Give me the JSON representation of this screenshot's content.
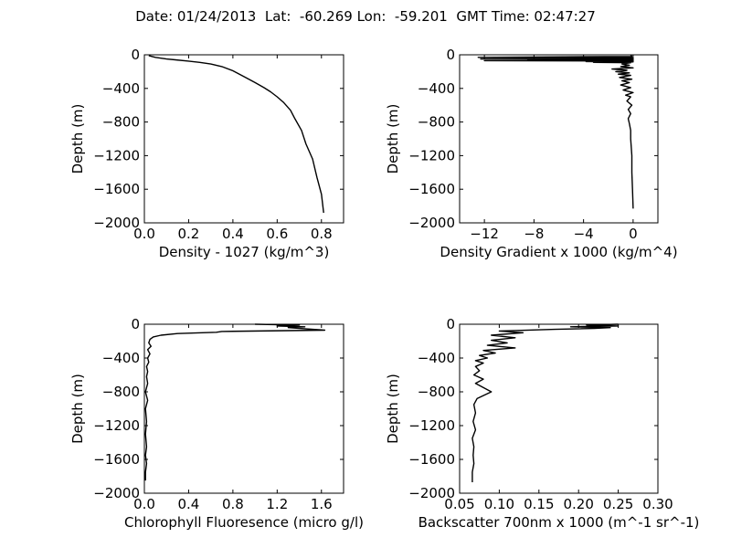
{
  "suptitle": "Date: 01/24/2013  Lat:  -60.269 Lon:  -59.201  GMT Time: 02:47:27",
  "chart_data": [
    {
      "type": "line",
      "xlabel": "Density - 1027 (kg/m^3)",
      "ylabel": "Depth (m)",
      "xlim": [
        0,
        0.9
      ],
      "ylim": [
        -2000,
        0
      ],
      "xticks": [
        0.0,
        0.2,
        0.4,
        0.6,
        0.8
      ],
      "xticklabels": [
        "0.0",
        "0.2",
        "0.4",
        "0.6",
        "0.8"
      ],
      "yticks": [
        0,
        -400,
        -800,
        -1200,
        -1600,
        -2000
      ],
      "yticklabels": [
        "0",
        "−400",
        "−800",
        "−1200",
        "−1600",
        "−2000"
      ],
      "series": [
        {
          "x": [
            0.02,
            0.05,
            0.1,
            0.14,
            0.2,
            0.25,
            0.3,
            0.35,
            0.4,
            0.45,
            0.5,
            0.54,
            0.57,
            0.6,
            0.63,
            0.66,
            0.68,
            0.71,
            0.73,
            0.76,
            0.78,
            0.8,
            0.81
          ],
          "y": [
            -10,
            -30,
            -50,
            -60,
            -75,
            -90,
            -110,
            -140,
            -190,
            -260,
            -330,
            -390,
            -440,
            -500,
            -570,
            -660,
            -760,
            -900,
            -1060,
            -1240,
            -1460,
            -1660,
            -1880
          ]
        }
      ]
    },
    {
      "type": "line",
      "xlabel": "Density Gradient x 1000 (kg/m^4)",
      "ylabel": "Depth (m)",
      "xlim": [
        -14,
        2
      ],
      "ylim": [
        -2000,
        0
      ],
      "xticks": [
        -12,
        -8,
        -4,
        0
      ],
      "xticklabels": [
        "−12",
        "−8",
        "−4",
        "0"
      ],
      "yticks": [
        0,
        -400,
        -800,
        -1200,
        -1600,
        -2000
      ],
      "yticklabels": [
        "0",
        "−400",
        "−800",
        "−1200",
        "−1600",
        "−2000"
      ],
      "series": [
        {
          "x": [
            -0.2,
            -0.1,
            -12.5,
            0,
            -4.5,
            0,
            -12.3,
            0,
            -8.5,
            0,
            -12,
            0,
            -3.8,
            0,
            -3.2,
            -0.2,
            -0.9,
            -0.3,
            -1,
            0,
            -1.7,
            -0.5,
            -1.4,
            -0.3,
            -1.2,
            -0.2,
            -1.1,
            -0.1,
            -0.9,
            -0.3,
            -1.0,
            -0.2,
            -0.8,
            0,
            -0.6,
            -0.2,
            -0.5,
            -0.1,
            -0.4,
            -0.2,
            -0.4,
            -0.3,
            -0.2,
            -0.2,
            -0.1,
            -0.1,
            -0.05,
            0
          ],
          "y": [
            0,
            -20,
            -30,
            -35,
            -40,
            -45,
            -50,
            -55,
            -60,
            -65,
            -70,
            -75,
            -80,
            -85,
            -90,
            -95,
            -110,
            -125,
            -140,
            -155,
            -170,
            -185,
            -200,
            -215,
            -230,
            -245,
            -270,
            -290,
            -310,
            -330,
            -360,
            -390,
            -420,
            -450,
            -480,
            -500,
            -550,
            -600,
            -650,
            -700,
            -760,
            -820,
            -900,
            -1000,
            -1200,
            -1400,
            -1600,
            -1830
          ]
        }
      ]
    },
    {
      "type": "line",
      "xlabel": "Chlorophyll Fluoresence (micro g/l)",
      "ylabel": "Depth (m)",
      "xlim": [
        0,
        1.8
      ],
      "ylim": [
        -2000,
        0
      ],
      "xticks": [
        0.0,
        0.4,
        0.8,
        1.2,
        1.6
      ],
      "xticklabels": [
        "0.0",
        "0.4",
        "0.8",
        "1.2",
        "1.6"
      ],
      "yticks": [
        0,
        -400,
        -800,
        -1200,
        -1600,
        -2000
      ],
      "yticklabels": [
        "0",
        "−400",
        "−800",
        "−1200",
        "−1600",
        "−2000"
      ],
      "series": [
        {
          "x": [
            1.0,
            1.4,
            1.2,
            1.45,
            1.3,
            1.63,
            0.7,
            0.65,
            0.3,
            0.15,
            0.08,
            0.05,
            0.04,
            0.06,
            0.03,
            0.05,
            0.03,
            0.04,
            0.02,
            0.03,
            0.02,
            0.03,
            0.01,
            0.03,
            0.01,
            0.02,
            0.01,
            0.02,
            0.01,
            0.02,
            0.01,
            0.01
          ],
          "y": [
            0,
            -10,
            -20,
            -30,
            -40,
            -70,
            -85,
            -95,
            -110,
            -130,
            -150,
            -180,
            -220,
            -260,
            -300,
            -350,
            -400,
            -450,
            -500,
            -560,
            -620,
            -700,
            -800,
            -900,
            -1000,
            -1150,
            -1300,
            -1450,
            -1550,
            -1650,
            -1750,
            -1850
          ]
        }
      ]
    },
    {
      "type": "line",
      "xlabel": "Backscatter 700nm x 1000 (m^-1 sr^-1)",
      "ylabel": "Depth (m)",
      "xlim": [
        0.05,
        0.3
      ],
      "ylim": [
        -2000,
        0
      ],
      "xticks": [
        0.05,
        0.1,
        0.15,
        0.2,
        0.25,
        0.3
      ],
      "xticklabels": [
        "0.05",
        "0.10",
        "0.15",
        "0.20",
        "0.25",
        "0.30"
      ],
      "yticks": [
        0,
        -400,
        -800,
        -1200,
        -1600,
        -2000
      ],
      "yticklabels": [
        "0",
        "−400",
        "−800",
        "−1200",
        "−1600",
        "−2000"
      ],
      "series": [
        {
          "x": [
            0.25,
            0.21,
            0.25,
            0.19,
            0.24,
            0.22,
            0.17,
            0.1,
            0.13,
            0.09,
            0.12,
            0.09,
            0.11,
            0.085,
            0.12,
            0.08,
            0.095,
            0.075,
            0.085,
            0.07,
            0.08,
            0.07,
            0.075,
            0.068,
            0.08,
            0.07,
            0.09,
            0.072,
            0.068,
            0.07,
            0.067,
            0.07,
            0.066,
            0.068,
            0.067,
            0.068,
            0.066,
            0.066
          ],
          "y": [
            0,
            -10,
            -20,
            -30,
            -40,
            -50,
            -60,
            -80,
            -100,
            -130,
            -160,
            -190,
            -220,
            -250,
            -280,
            -310,
            -340,
            -370,
            -400,
            -430,
            -460,
            -500,
            -550,
            -600,
            -650,
            -700,
            -800,
            -880,
            -950,
            -1050,
            -1150,
            -1250,
            -1350,
            -1450,
            -1550,
            -1650,
            -1750,
            -1870
          ]
        }
      ]
    }
  ]
}
